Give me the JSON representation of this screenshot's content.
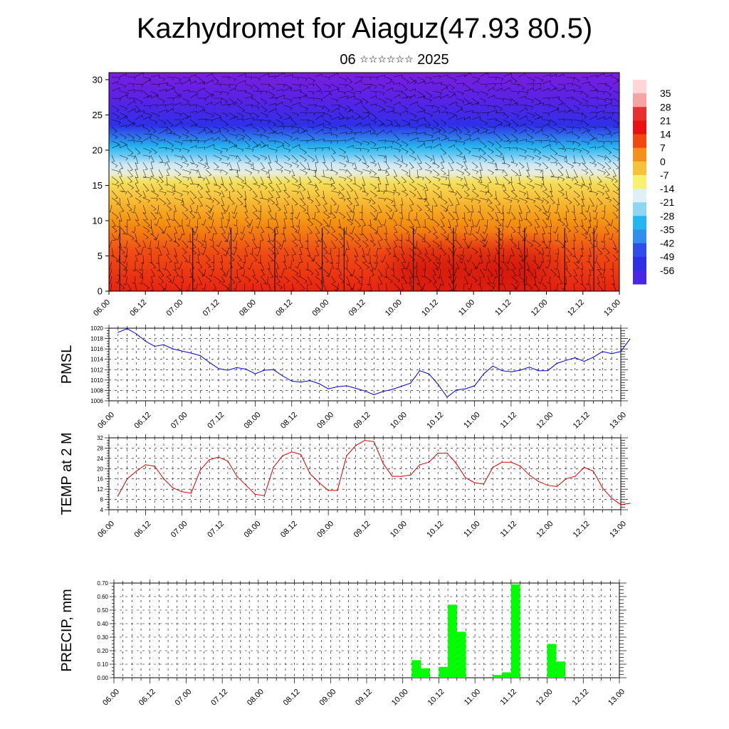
{
  "header": {
    "title": "Kazhydromet for Aiaguz(47.93 80.5)",
    "subtitle_day": "06",
    "subtitle_month_glyphs": "☆☆☆☆☆☆",
    "subtitle_year": "2025"
  },
  "time_ticks": [
    "06.00",
    "06.12",
    "07.00",
    "07.12",
    "08.00",
    "08.12",
    "09.00",
    "09.12",
    "10.00",
    "10.12",
    "11.00",
    "11.12",
    "12.00",
    "12.12",
    "13.00"
  ],
  "chart_data": [
    {
      "type": "heatmap",
      "name": "cross-section",
      "x_tick_labels": [
        "06.00",
        "06.12",
        "07.00",
        "07.12",
        "08.00",
        "08.12",
        "09.00",
        "09.12",
        "10.00",
        "10.12",
        "11.00",
        "11.12",
        "12.00",
        "12.12",
        "13.00"
      ],
      "ylim": [
        0,
        31
      ],
      "y_ticks": [
        0,
        5,
        10,
        15,
        20,
        25,
        30
      ],
      "colorbar_labels": [
        35,
        28,
        21,
        14,
        7,
        0,
        -7,
        -14,
        -21,
        -28,
        -35,
        -42,
        -49,
        -56
      ],
      "colorbar_range": [
        -63,
        42
      ],
      "colors": {
        "cold": "#7a1ee0",
        "cool": "#2f2fe8",
        "cyan": "#25b6ef",
        "light": "#cfe8f6",
        "yellow": "#f5e05a",
        "orange": "#f5940f",
        "red": "#e8240f"
      },
      "warm_cores_x": [
        8.4,
        9.5,
        10.6,
        11.5
      ],
      "wind_barbs": "dense black wind barbs overlaid"
    },
    {
      "type": "line",
      "name": "pmsl",
      "ylabel": "PMSL",
      "ylim": [
        1006,
        1020
      ],
      "y_ticks": [
        1006,
        1008,
        1010,
        1012,
        1014,
        1016,
        1018,
        1020
      ],
      "color": "#0000dd",
      "x_start_tick": 0.25,
      "x_step_ticks": 0.25,
      "values": [
        1019.2,
        1019.9,
        1018.9,
        1017.5,
        1016.5,
        1016.8,
        1016.0,
        1015.6,
        1015.2,
        1014.7,
        1013.4,
        1012.2,
        1011.9,
        1012.4,
        1012.1,
        1011.2,
        1011.9,
        1012.0,
        1010.8,
        1009.8,
        1009.6,
        1009.9,
        1009.3,
        1008.3,
        1008.7,
        1008.9,
        1008.4,
        1007.9,
        1007.2,
        1007.8,
        1008.2,
        1008.8,
        1009.4,
        1011.8,
        1011.2,
        1009.2,
        1006.7,
        1008.1,
        1008.3,
        1008.9,
        1011.2,
        1012.7,
        1011.8,
        1011.6,
        1011.9,
        1012.5,
        1011.8,
        1011.8,
        1013.2,
        1013.8,
        1014.3,
        1013.6,
        1014.4,
        1015.5,
        1015.1,
        1015.5,
        1017.9
      ]
    },
    {
      "type": "line",
      "name": "temp",
      "ylabel": "TEMP at 2 M",
      "ylim": [
        4,
        32
      ],
      "y_ticks": [
        4,
        8,
        12,
        16,
        20,
        24,
        28,
        32
      ],
      "color": "#dd0000",
      "x_start_tick": 0.25,
      "x_step_ticks": 0.25,
      "values": [
        9.5,
        16,
        19,
        21.5,
        21,
        16,
        12.5,
        11,
        10.5,
        19.5,
        23.5,
        24.5,
        23,
        17,
        13.5,
        10,
        9.5,
        20.5,
        25,
        26.5,
        25.5,
        18,
        14.5,
        11.5,
        11.5,
        25,
        29,
        31,
        30.5,
        22,
        17,
        17,
        17.5,
        21.5,
        22.5,
        26,
        26,
        22,
        16.5,
        14.5,
        14,
        20.5,
        22.5,
        22.5,
        21,
        17.5,
        15,
        13.5,
        13,
        16,
        17,
        20.5,
        19,
        12.5,
        8.5,
        6,
        6.5
      ]
    },
    {
      "type": "bar",
      "name": "precip",
      "ylabel": "PRECIP, mm",
      "ylim": [
        0,
        0.7
      ],
      "y_ticks": [
        "0.00",
        "0.10",
        "0.20",
        "0.30",
        "0.40",
        "0.50",
        "0.60",
        "0.70"
      ],
      "color": "#00ff00",
      "bars": [
        {
          "x": 8.25,
          "value": 0.13
        },
        {
          "x": 8.5,
          "value": 0.07
        },
        {
          "x": 9.0,
          "value": 0.08
        },
        {
          "x": 9.25,
          "value": 0.54
        },
        {
          "x": 9.5,
          "value": 0.34
        },
        {
          "x": 10.5,
          "value": 0.02
        },
        {
          "x": 10.75,
          "value": 0.04
        },
        {
          "x": 11.0,
          "value": 0.69
        },
        {
          "x": 12.0,
          "value": 0.25
        },
        {
          "x": 12.25,
          "value": 0.12
        }
      ]
    }
  ]
}
